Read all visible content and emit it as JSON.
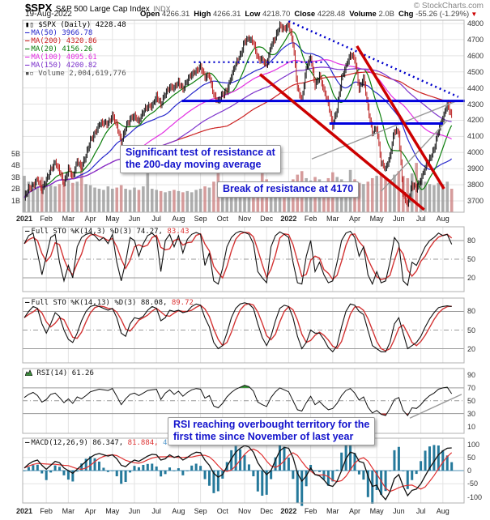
{
  "header": {
    "symbol": "$SPX",
    "name": "S&P 500 Large Cap Index",
    "exchange": "INDX",
    "credit": "© StockCharts.com",
    "date": "19-Aug-2022",
    "quote": [
      {
        "label": "Open",
        "value": "4266.31"
      },
      {
        "label": "High",
        "value": "4266.31"
      },
      {
        "label": "Low",
        "value": "4218.70"
      },
      {
        "label": "Close",
        "value": "4228.48"
      },
      {
        "label": "Volume",
        "value": "2.0B"
      },
      {
        "label": "Chg",
        "value": "-55.26 (-1.29%)",
        "down": true
      }
    ]
  },
  "legend": {
    "symbol_row": "$SPX (Daily) 4228.48",
    "ma_rows": [
      {
        "label": "MA(50)",
        "value": "3966.78",
        "color": "#2828cc",
        "days": 50
      },
      {
        "label": "MA(200)",
        "value": "4320.86",
        "color": "#cc2222",
        "days": 200
      },
      {
        "label": "MA(20)",
        "value": "4156.26",
        "color": "#0a7d0a",
        "days": 20
      },
      {
        "label": "MA(100)",
        "value": "4095.61",
        "color": "#e22ee2",
        "days": 100
      },
      {
        "label": "MA(150)",
        "value": "4200.82",
        "color": "#7d33cc",
        "days": 150
      }
    ],
    "volume_row": "Volume 2,004,619,776"
  },
  "panel_legends": {
    "sto_fast": {
      "name": "Full STO %K(14,3) %D(3)",
      "k": "74.27,",
      "d": "83.43"
    },
    "sto_slow": {
      "name": "Full STO %K(14,13) %D(3)",
      "k": "88.08,",
      "d": "89.72"
    },
    "rsi": {
      "name": "RSI(14)",
      "value": "61.26"
    },
    "macd": {
      "name": "MACD(12,26,9)",
      "v1": "86.347,",
      "v2": "81.884,",
      "v3": "4.462"
    }
  },
  "annotations": {
    "resistance_test": {
      "line1": "Significant test of resistance at",
      "line2": "the 200-day moving average"
    },
    "break_4170": {
      "text": "Break of resistance at 4170"
    },
    "rsi_overbought": {
      "line1": "RSI reaching overbought territory for the",
      "line2": "first time since November of last year"
    }
  },
  "colors": {
    "price": "#111111",
    "price_down": "#bb2222",
    "vol_up": "#999999",
    "vol_down": "#cc8484",
    "trend_blue": "#0000dd",
    "trend_red": "#cc0000",
    "annotation_text": "#1313cc",
    "sto_k": "#111111",
    "sto_d": "#d33333",
    "rsi_line": "#111111",
    "rsi_ob_fill": "#2f8f2f",
    "rsi_os_fill": "#cc3333",
    "macd_line": "#111111",
    "macd_signal": "#e03030",
    "macd_hist": "#25799b",
    "macd_zero": "#a8c8da",
    "grid": "#e3e3e3",
    "frame": "#b0b0b0",
    "band_line": "#999999"
  },
  "chart_data": {
    "type": "multi-panel-stock",
    "months": [
      "2021",
      "Feb",
      "Mar",
      "Apr",
      "May",
      "Jun",
      "Jul",
      "Aug",
      "Sep",
      "Oct",
      "Nov",
      "Dec",
      "2022",
      "Feb",
      "Mar",
      "Apr",
      "May",
      "Jun",
      "Jul",
      "Aug"
    ],
    "panels": [
      {
        "id": "price",
        "type": "candlestick",
        "yticks": [
          4800,
          4700,
          4600,
          4500,
          4400,
          4300,
          4200,
          4100,
          4000,
          3900,
          3800,
          3700
        ],
        "volume_ticks": [
          5,
          4,
          3,
          2,
          1
        ],
        "close": [
          3720,
          3770,
          3800,
          3840,
          3760,
          3830,
          3900,
          3935,
          3880,
          3815,
          3900,
          3840,
          3950,
          3915,
          3975,
          4075,
          4125,
          4170,
          4180,
          4185,
          4230,
          4160,
          4065,
          4160,
          4200,
          4225,
          4200,
          4250,
          4280,
          4295,
          4350,
          4290,
          4370,
          4410,
          4395,
          4435,
          4400,
          4445,
          4480,
          4510,
          4535,
          4460,
          4480,
          4360,
          4310,
          4360,
          4390,
          4470,
          4545,
          4605,
          4690,
          4700,
          4685,
          4590,
          4570,
          4540,
          4670,
          4710,
          4780,
          4770,
          4795,
          4670,
          4400,
          4330,
          4515,
          4590,
          4420,
          4475,
          4380,
          4310,
          4170,
          4260,
          4460,
          4540,
          4600,
          4580,
          4400,
          4460,
          4270,
          4130,
          4155,
          3930,
          3900,
          3980,
          4130,
          4120,
          3750,
          3675,
          3795,
          3785,
          3830,
          3900,
          3960,
          4025,
          4130,
          4210,
          4305,
          4228
        ],
        "volume_b": [
          3.1,
          2.6,
          2.4,
          2.2,
          3.0,
          2.5,
          2.3,
          2.2,
          2.4,
          2.6,
          2.8,
          2.5,
          2.6,
          3.8,
          2.4,
          2.3,
          2.1,
          2.0,
          1.9,
          2.2,
          2.0,
          2.1,
          2.3,
          2.0,
          1.9,
          2.1,
          1.9,
          2.2,
          4.4,
          2.0,
          1.9,
          1.8,
          1.7,
          1.8,
          1.9,
          1.8,
          1.7,
          1.8,
          1.7,
          1.9,
          2.0,
          2.2,
          2.1,
          2.6,
          4.5,
          2.3,
          2.1,
          2.0,
          1.9,
          2.1,
          2.2,
          2.1,
          2.3,
          2.5,
          4.6,
          2.8,
          2.4,
          2.2,
          2.1,
          2.0,
          2.6,
          2.8,
          3.2,
          3.5,
          2.9,
          2.7,
          3.0,
          2.8,
          2.6,
          2.9,
          3.4,
          3.0,
          2.8,
          2.6,
          3.6,
          2.8,
          2.5,
          2.4,
          2.6,
          2.9,
          3.1,
          3.3,
          3.0,
          2.8,
          3.2,
          3.5,
          3.1,
          2.9,
          3.3,
          4.2,
          2.9,
          2.6,
          2.4,
          2.3,
          2.5,
          2.4,
          2.6,
          2.0
        ],
        "trendlines": [
          {
            "name": "resistance-4320",
            "m1": 7.15,
            "p1": 4320,
            "m2": 20.0,
            "p2": 4320,
            "color": "#0000dd",
            "w": 3,
            "dash": ""
          },
          {
            "name": "resistance-4170",
            "m1": 13.85,
            "p1": 4180,
            "m2": 19.0,
            "p2": 4180,
            "color": "#0000dd",
            "w": 3,
            "dash": ""
          },
          {
            "name": "support-dotted",
            "m1": 7.7,
            "p1": 4560,
            "m2": 13.6,
            "p2": 4560,
            "color": "#0000cc",
            "w": 2.2,
            "dash": "2 4"
          },
          {
            "name": "downtrend-dotted",
            "m1": 12.0,
            "p1": 4815,
            "m2": 19.7,
            "p2": 4345,
            "color": "#0000cc",
            "w": 2.6,
            "dash": "2 4"
          },
          {
            "name": "downtrend-red-1",
            "m1": 10.7,
            "p1": 4485,
            "m2": 18.15,
            "p2": 3645,
            "color": "#cc0000",
            "w": 3.5,
            "dash": ""
          },
          {
            "name": "downtrend-red-2",
            "m1": 15.1,
            "p1": 4660,
            "m2": 19.05,
            "p2": 3775,
            "color": "#cc0000",
            "w": 3.5,
            "dash": ""
          }
        ],
        "pointers": [
          {
            "m1": 13.05,
            "p1": 3960,
            "m2": 19.6,
            "p2": 4318
          },
          {
            "m1": 16.2,
            "p1": 3760,
            "m2": 19.2,
            "p2": 4200
          }
        ]
      },
      {
        "id": "sto-fast",
        "type": "line",
        "yticks": [
          80,
          50,
          20
        ],
        "overbought": 80,
        "oversold": 20,
        "mid": 50,
        "k": [
          75,
          88,
          92,
          60,
          25,
          55,
          85,
          90,
          45,
          15,
          40,
          20,
          70,
          85,
          90,
          92,
          88,
          80,
          85,
          75,
          90,
          45,
          15,
          45,
          85,
          80,
          55,
          75,
          88,
          92,
          85,
          30,
          80,
          90,
          70,
          88,
          60,
          82,
          90,
          93,
          90,
          40,
          60,
          15,
          10,
          35,
          70,
          85,
          92,
          95,
          93,
          90,
          75,
          30,
          20,
          12,
          70,
          88,
          94,
          90,
          85,
          45,
          12,
          10,
          55,
          80,
          30,
          45,
          25,
          12,
          15,
          45,
          80,
          92,
          95,
          85,
          55,
          70,
          25,
          10,
          30,
          12,
          15,
          45,
          85,
          75,
          15,
          8,
          45,
          40,
          55,
          70,
          80,
          85,
          92,
          88,
          90,
          74
        ]
      },
      {
        "id": "sto-slow",
        "type": "line",
        "yticks": [
          80,
          50,
          20
        ],
        "overbought": 80,
        "oversold": 20,
        "mid": 50,
        "k": [
          70,
          80,
          88,
          85,
          60,
          45,
          60,
          78,
          72,
          50,
          35,
          30,
          45,
          65,
          80,
          88,
          90,
          88,
          85,
          82,
          85,
          70,
          45,
          40,
          60,
          70,
          68,
          72,
          82,
          88,
          85,
          65,
          70,
          82,
          80,
          82,
          78,
          80,
          88,
          92,
          90,
          70,
          55,
          30,
          20,
          25,
          45,
          70,
          85,
          92,
          94,
          92,
          85,
          60,
          38,
          25,
          40,
          65,
          85,
          90,
          88,
          70,
          40,
          20,
          30,
          50,
          45,
          45,
          35,
          22,
          15,
          25,
          55,
          80,
          92,
          90,
          80,
          75,
          50,
          25,
          20,
          15,
          15,
          30,
          60,
          70,
          45,
          20,
          25,
          30,
          40,
          55,
          68,
          78,
          86,
          88,
          89,
          88
        ]
      },
      {
        "id": "rsi",
        "type": "line",
        "yticks": [
          90,
          70,
          50,
          30,
          10
        ],
        "overbought": 70,
        "oversold": 30,
        "mid": 50,
        "values": [
          55,
          60,
          63,
          58,
          48,
          52,
          60,
          62,
          55,
          47,
          53,
          46,
          56,
          53,
          58,
          64,
          66,
          68,
          67,
          66,
          69,
          57,
          44,
          53,
          60,
          62,
          58,
          62,
          66,
          67,
          68,
          52,
          62,
          67,
          60,
          65,
          57,
          63,
          67,
          69,
          68,
          54,
          58,
          42,
          39,
          46,
          56,
          63,
          68,
          71,
          74,
          72,
          65,
          48,
          44,
          41,
          55,
          64,
          70,
          67,
          64,
          50,
          36,
          34,
          47,
          57,
          44,
          49,
          42,
          36,
          38,
          46,
          58,
          66,
          69,
          62,
          51,
          56,
          40,
          31,
          35,
          29,
          27,
          38,
          52,
          55,
          35,
          27,
          39,
          38,
          44,
          52,
          58,
          62,
          68,
          70,
          71,
          61
        ],
        "pointer": {
          "m1": 17.5,
          "v1": 23,
          "m2": 19.85,
          "v2": 60
        }
      },
      {
        "id": "macd",
        "type": "line+histogram",
        "yticks": [
          100,
          50,
          0,
          -50,
          -100
        ],
        "values": [
          10,
          25,
          35,
          40,
          20,
          5,
          20,
          35,
          30,
          10,
          0,
          -10,
          5,
          20,
          35,
          50,
          60,
          65,
          60,
          55,
          60,
          45,
          20,
          15,
          30,
          40,
          35,
          45,
          55,
          62,
          60,
          40,
          45,
          60,
          50,
          55,
          40,
          50,
          62,
          70,
          68,
          40,
          20,
          -10,
          -25,
          -15,
          15,
          45,
          70,
          85,
          95,
          90,
          70,
          30,
          5,
          -15,
          0,
          40,
          75,
          88,
          85,
          50,
          -10,
          -40,
          -20,
          10,
          -15,
          -20,
          -35,
          -55,
          -60,
          -40,
          0,
          45,
          70,
          65,
          35,
          30,
          -20,
          -60,
          -55,
          -90,
          -110,
          -80,
          -30,
          -15,
          -60,
          -95,
          -75,
          -70,
          -50,
          -20,
          10,
          35,
          60,
          75,
          85,
          86
        ]
      }
    ]
  }
}
